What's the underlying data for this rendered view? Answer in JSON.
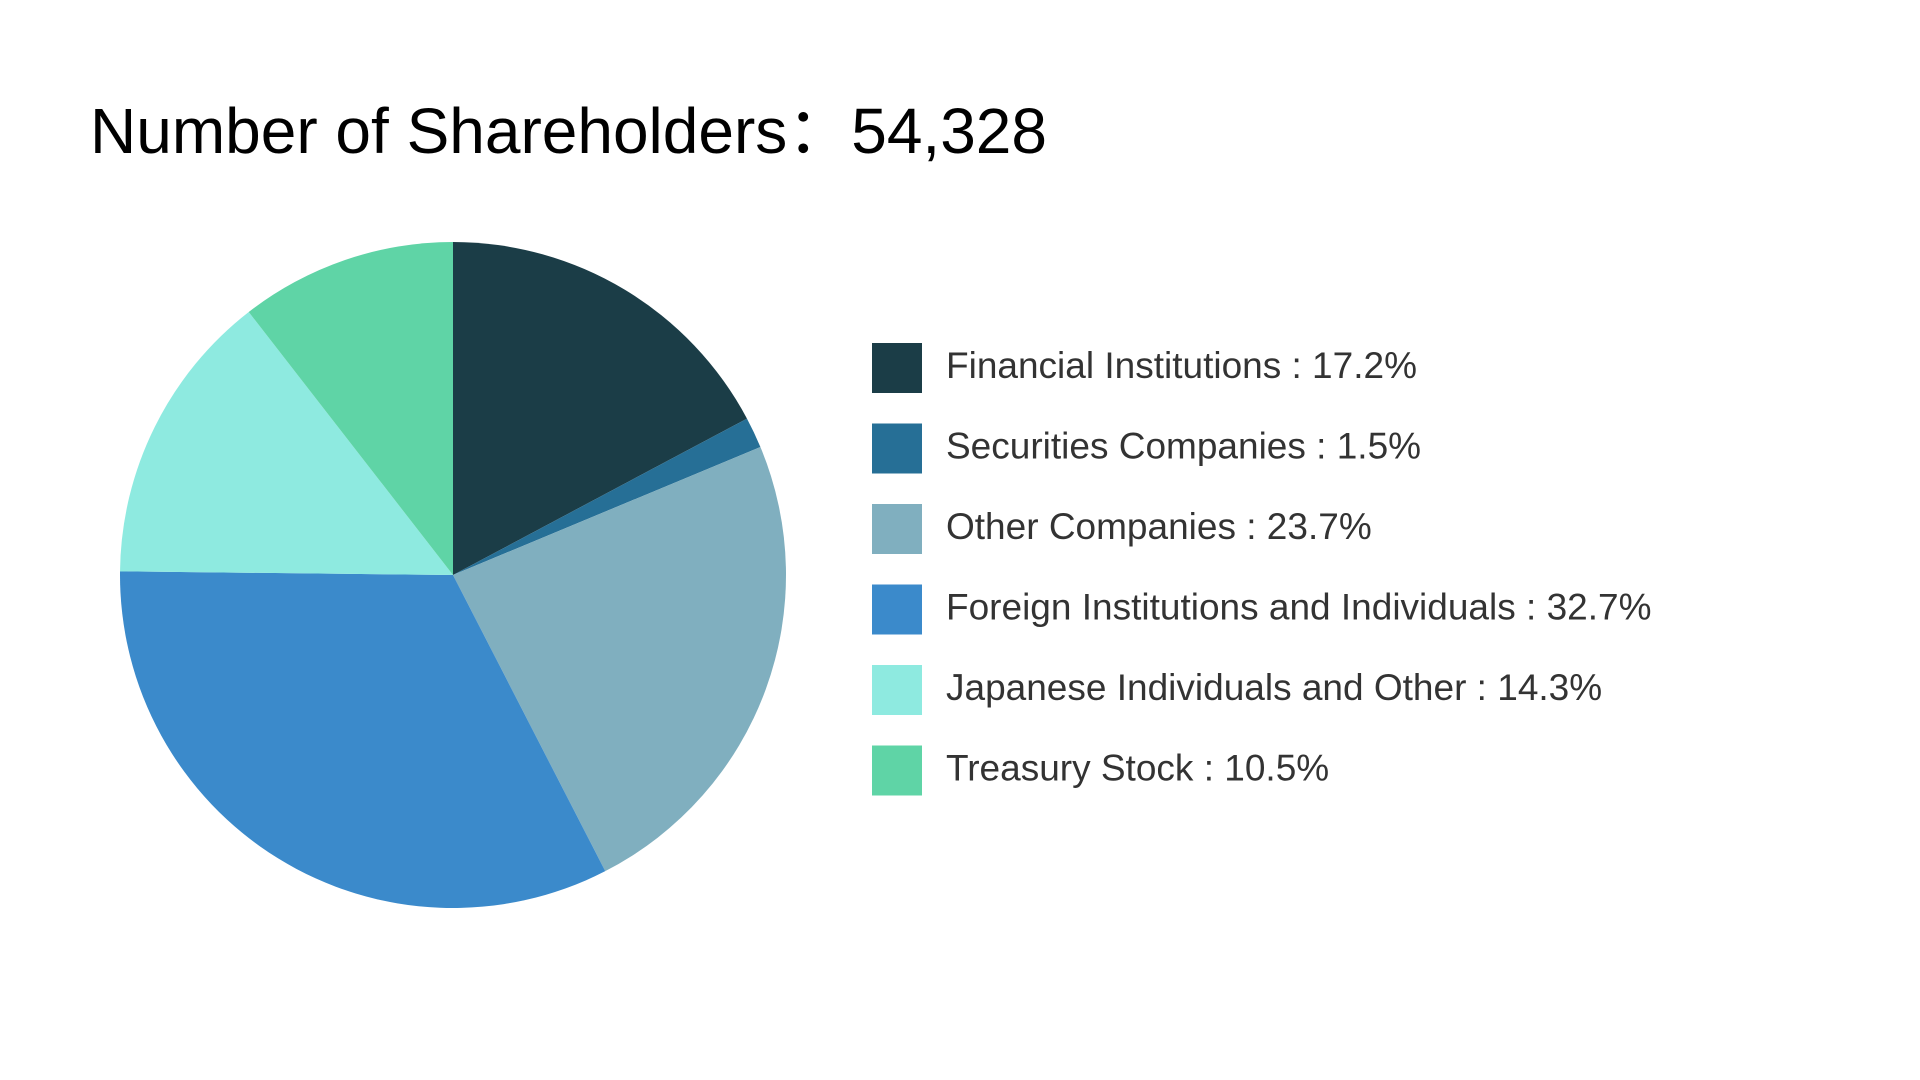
{
  "chart_data": {
    "type": "pie",
    "title": "Number of Shareholders：54,328",
    "categories": [
      "Financial Institutions : 17.2%",
      "Securities Companies : 1.5%",
      "Other Companies : 23.7%",
      "Foreign Institutions and Individuals : 32.7%",
      "Japanese Individuals and Other : 14.3%",
      "Treasury Stock : 10.5%"
    ],
    "values": [
      17.2,
      1.5,
      23.7,
      32.7,
      14.3,
      10.5
    ],
    "colors": [
      "#1b3d47",
      "#266f96",
      "#80afbf",
      "#3b8acb",
      "#8eeae0",
      "#5fd4a6"
    ],
    "legend": "right"
  }
}
